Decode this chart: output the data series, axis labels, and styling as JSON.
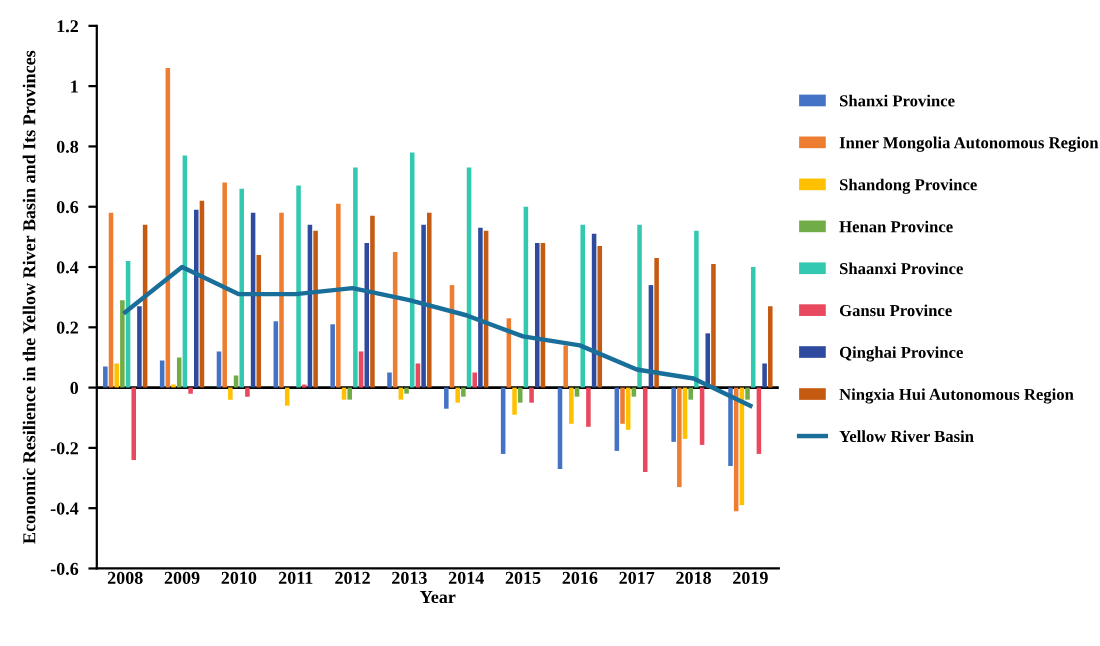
{
  "chart_data": {
    "type": "bar",
    "xlabel": "Year",
    "ylabel": "Economic Resilience in the Yellow River Basin and Its Provinces",
    "categories": [
      "2008",
      "2009",
      "2010",
      "2011",
      "2012",
      "2013",
      "2014",
      "2015",
      "2016",
      "2017",
      "2018",
      "2019"
    ],
    "series": [
      {
        "name": "Shanxi Province",
        "color": "#4472c4",
        "values": [
          0.07,
          0.09,
          0.12,
          0.22,
          0.21,
          0.05,
          -0.07,
          -0.22,
          -0.27,
          -0.21,
          -0.18,
          -0.26
        ]
      },
      {
        "name": "Inner Mongolia Autonomous Region",
        "color": "#ed7d31",
        "values": [
          0.58,
          1.06,
          0.68,
          0.58,
          0.61,
          0.45,
          0.34,
          0.23,
          0.14,
          -0.12,
          -0.33,
          -0.41
        ]
      },
      {
        "name": "Shandong Province",
        "color": "#ffc000",
        "values": [
          0.08,
          0.01,
          -0.04,
          -0.06,
          -0.04,
          -0.04,
          -0.05,
          -0.09,
          -0.12,
          -0.14,
          -0.17,
          -0.39
        ]
      },
      {
        "name": "Henan Province",
        "color": "#70ad47",
        "values": [
          0.29,
          0.1,
          0.04,
          0.0,
          -0.04,
          -0.02,
          -0.03,
          -0.05,
          -0.03,
          -0.03,
          -0.04,
          -0.04
        ]
      },
      {
        "name": "Shaanxi Province",
        "color": "#33c9b0",
        "values": [
          0.42,
          0.77,
          0.66,
          0.67,
          0.73,
          0.78,
          0.73,
          0.6,
          0.54,
          0.54,
          0.52,
          0.4
        ]
      },
      {
        "name": "Gansu Province",
        "color": "#e8495f",
        "values": [
          -0.24,
          -0.02,
          -0.03,
          0.01,
          0.12,
          0.08,
          0.05,
          -0.05,
          -0.13,
          -0.28,
          -0.19,
          -0.22
        ]
      },
      {
        "name": "Qinghai Province",
        "color": "#2f4b9e",
        "values": [
          0.27,
          0.59,
          0.58,
          0.54,
          0.48,
          0.54,
          0.53,
          0.48,
          0.51,
          0.34,
          0.18,
          0.08
        ]
      },
      {
        "name": "Ningxia Hui Autonomous Region",
        "color": "#c55a11",
        "values": [
          0.54,
          0.62,
          0.44,
          0.52,
          0.57,
          0.58,
          0.52,
          0.48,
          0.47,
          0.43,
          0.41,
          0.27
        ]
      },
      {
        "name": "Yellow River Basin",
        "type": "line",
        "color": "#1a6f9a",
        "values": [
          0.25,
          0.4,
          0.31,
          0.31,
          0.33,
          0.29,
          0.24,
          0.17,
          0.14,
          0.06,
          0.03,
          -0.06
        ]
      }
    ],
    "ylim": [
      -0.6,
      1.2
    ],
    "yticks": [
      -0.6,
      -0.4,
      -0.2,
      0,
      0.2,
      0.4,
      0.6,
      0.8,
      1,
      1.2
    ],
    "legend": "right"
  }
}
